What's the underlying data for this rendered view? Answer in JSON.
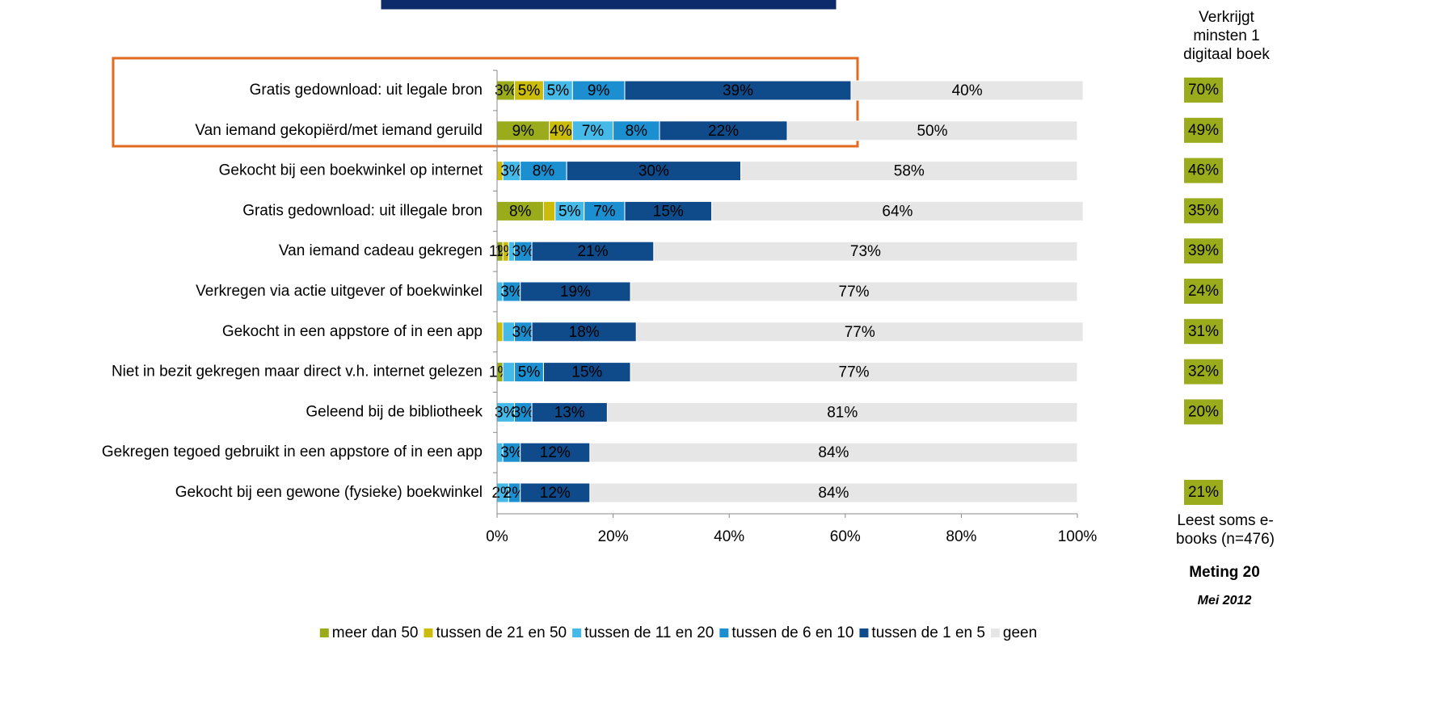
{
  "chart_data": {
    "type": "stacked-bar-horizontal",
    "categories": [
      "Gratis gedownload: uit legale bron",
      "Van iemand gekopiërd/met iemand geruild",
      "Gekocht bij een boekwinkel op internet",
      "Gratis gedownload: uit illegale bron",
      "Van iemand cadeau gekregen",
      "Verkregen via actie uitgever of boekwinkel",
      "Gekocht in een appstore of in een app",
      "Niet in bezit gekregen maar direct v.h. internet gelezen",
      "Geleend bij de bibliotheek",
      "Gekregen tegoed gebruikt in een appstore of in een app",
      "Gekocht bij een gewone (fysieke) boekwinkel"
    ],
    "series": [
      {
        "name": "meer dan 50",
        "color": "#9aab1c",
        "values": [
          3,
          9,
          0,
          8,
          1,
          0,
          0,
          1,
          0,
          0,
          0
        ],
        "value_labels": [
          "3%",
          "9%",
          null,
          "8%",
          "1%",
          null,
          null,
          "1%",
          null,
          null,
          null
        ]
      },
      {
        "name": "tussen de 21 en 50",
        "color": "#cbbb0b",
        "values": [
          5,
          4,
          1,
          2,
          1,
          0,
          1,
          0,
          0,
          0,
          0
        ],
        "value_labels": [
          "5%",
          "4%",
          null,
          null,
          "1%",
          null,
          null,
          null,
          null,
          null,
          null
        ]
      },
      {
        "name": "tussen de 11 en 20",
        "color": "#45b9e8",
        "values": [
          5,
          7,
          3,
          5,
          1,
          1,
          2,
          2,
          3,
          1,
          2
        ],
        "value_labels": [
          "5%",
          "7%",
          "3%",
          "5%",
          null,
          null,
          null,
          null,
          "3%",
          null,
          "2%"
        ]
      },
      {
        "name": "tussen de 6 en 10",
        "color": "#1c8fd0",
        "values": [
          9,
          8,
          8,
          7,
          3,
          3,
          3,
          5,
          3,
          3,
          2
        ],
        "value_labels": [
          "9%",
          "8%",
          "8%",
          "7%",
          "3%",
          "3%",
          "3%",
          "5%",
          "3%",
          "3%",
          "2%"
        ]
      },
      {
        "name": "tussen de 1 en 5",
        "color": "#0f4a8a",
        "values": [
          39,
          22,
          30,
          15,
          21,
          19,
          18,
          15,
          13,
          12,
          12
        ],
        "value_labels": [
          "39%",
          "22%",
          "30%",
          "15%",
          "21%",
          "19%",
          "18%",
          "15%",
          "13%",
          "12%",
          "12%"
        ]
      },
      {
        "name": "geen",
        "color": "#e6e6e6",
        "values": [
          40,
          50,
          58,
          64,
          73,
          77,
          77,
          77,
          81,
          84,
          84
        ],
        "value_labels": [
          "40%",
          "50%",
          "58%",
          "64%",
          "73%",
          "77%",
          "77%",
          "77%",
          "81%",
          "84%",
          "84%"
        ]
      }
    ],
    "xlim": [
      0,
      100
    ],
    "xticks": [
      {
        "value": 0,
        "label": "0%"
      },
      {
        "value": 20,
        "label": "20%"
      },
      {
        "value": 40,
        "label": "40%"
      },
      {
        "value": 60,
        "label": "60%"
      },
      {
        "value": 80,
        "label": "80%"
      },
      {
        "value": 100,
        "label": "100%"
      }
    ],
    "legend": "bottom",
    "side_panel": {
      "title": "Verkrijgt minsten 1 digitaal boek",
      "color": "#9aab1c",
      "values": [
        70,
        49,
        46,
        35,
        39,
        24,
        31,
        32,
        20,
        null,
        21
      ],
      "value_labels": [
        "70%",
        "49%",
        "46%",
        "35%",
        "39%",
        "24%",
        "31%",
        "32%",
        "20%",
        null,
        "21%"
      ],
      "footer": "Leest soms e-books (n=476)"
    },
    "note_title": "Meting 20",
    "note_date": "Mei 2012"
  }
}
